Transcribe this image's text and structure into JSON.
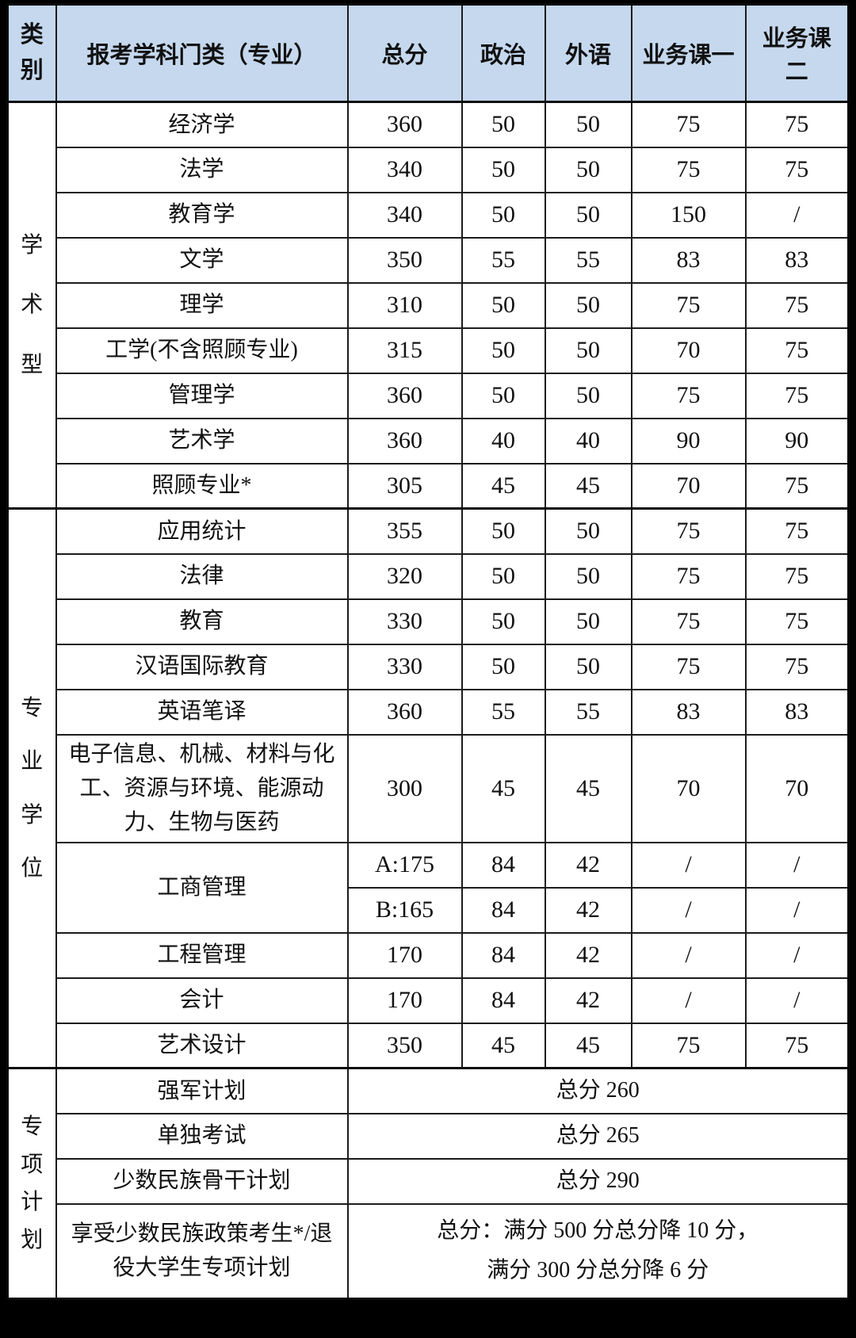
{
  "colors": {
    "frame_bg": "#000000",
    "header_bg": "#C5D8EE",
    "cell_bg": "#FFFFFF",
    "border": "#1C1C1C",
    "text": "#111111"
  },
  "table": {
    "header": {
      "category_label": "类别",
      "columns": [
        "报考学科门类（专业）",
        "总分",
        "政治",
        "外语",
        "业务课一",
        "业务课二"
      ]
    },
    "sections": [
      {
        "category": "学术型",
        "rows": [
          {
            "major": "经济学",
            "scores": [
              "360",
              "50",
              "50",
              "75",
              "75"
            ]
          },
          {
            "major": "法学",
            "scores": [
              "340",
              "50",
              "50",
              "75",
              "75"
            ]
          },
          {
            "major": "教育学",
            "scores": [
              "340",
              "50",
              "50",
              "150",
              "/"
            ]
          },
          {
            "major": "文学",
            "scores": [
              "350",
              "55",
              "55",
              "83",
              "83"
            ]
          },
          {
            "major": "理学",
            "scores": [
              "310",
              "50",
              "50",
              "75",
              "75"
            ]
          },
          {
            "major": "工学(不含照顾专业)",
            "scores": [
              "315",
              "50",
              "50",
              "70",
              "75"
            ]
          },
          {
            "major": "管理学",
            "scores": [
              "360",
              "50",
              "50",
              "75",
              "75"
            ]
          },
          {
            "major": "艺术学",
            "scores": [
              "360",
              "40",
              "40",
              "90",
              "90"
            ]
          },
          {
            "major": "照顾专业*",
            "scores": [
              "305",
              "45",
              "45",
              "70",
              "75"
            ]
          }
        ]
      },
      {
        "category": "专业学位",
        "rows": [
          {
            "major": "应用统计",
            "scores": [
              "355",
              "50",
              "50",
              "75",
              "75"
            ]
          },
          {
            "major": "法律",
            "scores": [
              "320",
              "50",
              "50",
              "75",
              "75"
            ]
          },
          {
            "major": "教育",
            "scores": [
              "330",
              "50",
              "50",
              "75",
              "75"
            ]
          },
          {
            "major": "汉语国际教育",
            "scores": [
              "330",
              "50",
              "50",
              "75",
              "75"
            ]
          },
          {
            "major": "英语笔译",
            "scores": [
              "360",
              "55",
              "55",
              "83",
              "83"
            ]
          },
          {
            "major": "电子信息、机械、材料与化工、资源与环境、能源动力、生物与医药",
            "scores": [
              "300",
              "45",
              "45",
              "70",
              "70"
            ],
            "size": "tall3"
          },
          {
            "major": "工商管理",
            "subrows": [
              [
                "A:175",
                "84",
                "42",
                "/",
                "/"
              ],
              [
                "B:165",
                "84",
                "42",
                "/",
                "/"
              ]
            ]
          },
          {
            "major": "工程管理",
            "scores": [
              "170",
              "84",
              "42",
              "/",
              "/"
            ]
          },
          {
            "major": "会计",
            "scores": [
              "170",
              "84",
              "42",
              "/",
              "/"
            ]
          },
          {
            "major": "艺术设计",
            "scores": [
              "350",
              "45",
              "45",
              "75",
              "75"
            ]
          }
        ]
      },
      {
        "category": "专项计划",
        "rows": [
          {
            "major": "强军计划",
            "merged_lines": [
              "总分 260"
            ]
          },
          {
            "major": "单独考试",
            "merged_lines": [
              "总分 265"
            ]
          },
          {
            "major": "少数民族骨干计划",
            "merged_lines": [
              "总分 290"
            ]
          },
          {
            "major": "享受少数民族政策考生*/退役大学生专项计划",
            "merged_lines": [
              "总分：满分 500 分总分降 10 分，",
              "满分 300 分总分降 6 分"
            ],
            "size": "tall2"
          }
        ]
      }
    ]
  }
}
